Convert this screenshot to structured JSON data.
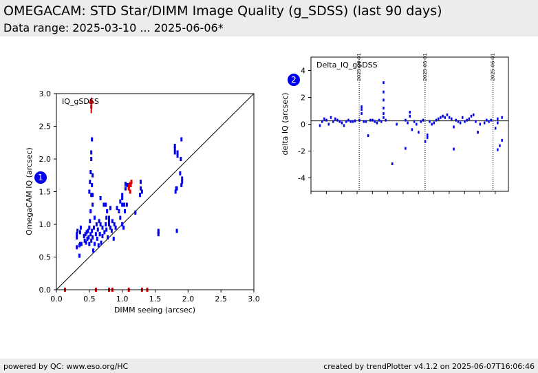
{
  "header": {
    "title": "OMEGACAM: STD Star/DIMM Image Quality (g_SDSS) (last 90 days)",
    "subtitle": "Data range: 2025-03-10 ... 2025-06-06*"
  },
  "footer": {
    "left": "powered by QC: www.eso.org/HC",
    "right": "created by trendPlotter v4.1.2 on 2025-06-07T16:06:46"
  },
  "colors": {
    "points": "#0000ee",
    "outliers": "#dd0000",
    "badge": "#0000ee"
  },
  "chart_data": [
    {
      "type": "scatter",
      "badge": "1",
      "title": "IQ_gSDSS",
      "xlabel": "DIMM seeing (arcsec)",
      "ylabel": "OmegaCAM IQ (arcsec)",
      "xlim": [
        0.0,
        3.0
      ],
      "ylim": [
        0.0,
        3.0
      ],
      "xticks": [
        "0.0",
        "0.5",
        "1.0",
        "1.5",
        "2.0",
        "2.5",
        "3.0"
      ],
      "yticks": [
        "0.0",
        "0.5",
        "1.0",
        "1.5",
        "2.0",
        "2.5",
        "3.0"
      ],
      "diagonal_line": true,
      "series": [
        {
          "role": "points",
          "x": [
            0.31,
            0.31,
            0.31,
            0.32,
            0.35,
            0.35,
            0.36,
            0.36,
            0.37,
            0.38,
            0.42,
            0.43,
            0.44,
            0.45,
            0.46,
            0.47,
            0.48,
            0.49,
            0.5,
            0.5,
            0.51,
            0.52,
            0.52,
            0.53,
            0.53,
            0.54,
            0.54,
            0.55,
            0.55,
            0.56,
            0.57,
            0.58,
            0.58,
            0.6,
            0.61,
            0.62,
            0.63,
            0.64,
            0.65,
            0.66,
            0.67,
            0.68,
            0.7,
            0.7,
            0.72,
            0.73,
            0.75,
            0.76,
            0.77,
            0.78,
            0.8,
            0.8,
            0.82,
            0.84,
            0.85,
            0.87,
            0.88,
            0.9,
            0.92,
            0.95,
            0.97,
            1.0,
            1.0,
            1.02,
            1.03,
            1.05,
            1.05,
            1.08,
            1.2,
            1.27,
            1.28,
            1.28,
            1.3,
            0.5,
            0.51,
            0.52,
            0.53,
            0.55,
            0.55,
            0.66,
            0.67,
            0.75,
            0.76,
            0.8,
            0.82,
            0.97,
            1.0,
            1.0,
            1.04,
            1.07,
            1.09,
            1.55,
            1.55,
            1.55,
            1.8,
            1.8,
            1.8,
            1.81,
            1.82,
            1.83,
            1.83,
            1.84,
            1.84,
            1.88,
            1.89,
            1.9,
            1.9,
            1.91,
            1.91,
            0.54,
            0.53
          ],
          "y": [
            0.65,
            0.8,
            0.85,
            0.9,
            0.52,
            0.68,
            0.7,
            0.88,
            0.95,
            0.7,
            0.82,
            0.75,
            0.85,
            0.72,
            0.88,
            0.78,
            0.9,
            0.8,
            0.7,
            0.95,
            1.05,
            0.85,
            1.2,
            0.75,
            1.45,
            0.9,
            1.6,
            0.8,
            1.75,
            0.6,
            0.95,
            0.7,
            1.1,
            0.85,
            1.0,
            0.78,
            0.92,
            0.68,
            1.05,
            0.85,
            1.4,
            0.72,
            0.95,
            0.82,
            1.3,
            0.88,
            1.0,
            0.92,
            1.2,
            0.8,
            1.0,
            1.05,
            1.25,
            0.9,
            1.05,
            0.78,
            1.0,
            0.95,
            1.25,
            1.2,
            1.35,
            1.0,
            1.45,
            0.95,
            1.3,
            1.55,
            1.62,
            1.6,
            1.18,
            1.45,
            1.55,
            1.65,
            1.5,
            1.5,
            1.65,
            1.8,
            2.0,
            1.3,
            1.45,
            0.85,
            1.0,
            1.3,
            1.1,
            1.1,
            0.95,
            1.1,
            1.3,
            1.4,
            1.2,
            1.3,
            1.6,
            0.85,
            0.88,
            0.9,
            2.1,
            2.15,
            2.2,
            1.5,
            1.55,
            1.55,
            0.9,
            2.05,
            2.1,
            1.78,
            2.0,
            1.6,
            2.3,
            1.65,
            1.7,
            2.3,
            2.1
          ]
        },
        {
          "role": "outliers",
          "x": [
            0.53,
            1.1,
            1.12,
            1.13,
            1.14,
            1.1,
            1.12,
            0.13,
            0.6,
            0.8,
            0.85,
            1.1,
            1.3,
            1.38
          ],
          "y": [
            2.8,
            1.58,
            1.62,
            1.6,
            1.65,
            1.55,
            1.5,
            0.0,
            0.0,
            0.0,
            0.0,
            0.0,
            0.0,
            0.0
          ]
        }
      ]
    },
    {
      "type": "scatter",
      "badge": "2",
      "title": "Delta_IQ_gSDSS",
      "xlabel": "",
      "ylabel": "delta IQ (arcsec)",
      "x_is_dates": true,
      "xlim": [
        "2025-03-10",
        "2025-06-06"
      ],
      "ylim": [
        -5,
        5
      ],
      "yticks": [
        "4",
        "2",
        "0",
        "-2",
        "-4"
      ],
      "reference_line_y": 0.25,
      "date_markers": [
        "2025-04-01",
        "2025-05-01",
        "2025-06-01"
      ],
      "series": [
        {
          "role": "points",
          "x": [
            "2025-03-14",
            "2025-03-15",
            "2025-03-16",
            "2025-03-17",
            "2025-03-18",
            "2025-03-19",
            "2025-03-20",
            "2025-03-21",
            "2025-03-22",
            "2025-03-23",
            "2025-03-24",
            "2025-03-25",
            "2025-03-26",
            "2025-03-27",
            "2025-03-28",
            "2025-03-29",
            "2025-03-30",
            "2025-04-01",
            "2025-04-02",
            "2025-04-02",
            "2025-04-02",
            "2025-04-03",
            "2025-04-04",
            "2025-04-05",
            "2025-04-06",
            "2025-04-07",
            "2025-04-08",
            "2025-04-09",
            "2025-04-10",
            "2025-04-11",
            "2025-04-12",
            "2025-04-12",
            "2025-04-12",
            "2025-04-12",
            "2025-04-12",
            "2025-04-12",
            "2025-04-13",
            "2025-04-16",
            "2025-04-18",
            "2025-04-22",
            "2025-04-22",
            "2025-04-23",
            "2025-04-24",
            "2025-04-24",
            "2025-04-25",
            "2025-04-26",
            "2025-04-27",
            "2025-04-28",
            "2025-04-29",
            "2025-04-30",
            "2025-05-01",
            "2025-05-02",
            "2025-05-02",
            "2025-05-03",
            "2025-05-04",
            "2025-05-05",
            "2025-05-06",
            "2025-05-07",
            "2025-05-08",
            "2025-05-09",
            "2025-05-10",
            "2025-05-11",
            "2025-05-12",
            "2025-05-13",
            "2025-05-14",
            "2025-05-15",
            "2025-05-16",
            "2025-05-17",
            "2025-05-18",
            "2025-05-19",
            "2025-05-20",
            "2025-05-21",
            "2025-05-22",
            "2025-05-23",
            "2025-05-24",
            "2025-05-25",
            "2025-05-26",
            "2025-05-28",
            "2025-05-29",
            "2025-05-30",
            "2025-05-31",
            "2025-06-02",
            "2025-06-03",
            "2025-06-03",
            "2025-06-03",
            "2025-06-04",
            "2025-06-05",
            "2025-06-05",
            "2025-05-14",
            "2025-05-25"
          ],
          "y": [
            -0.1,
            0.2,
            0.4,
            0.3,
            0.0,
            0.5,
            0.2,
            0.4,
            0.3,
            0.2,
            0.1,
            -0.1,
            0.2,
            0.3,
            0.2,
            0.2,
            0.25,
            0.3,
            0.8,
            1.1,
            1.3,
            0.2,
            0.2,
            -0.85,
            0.3,
            0.3,
            0.2,
            0.1,
            0.3,
            0.2,
            0.5,
            0.8,
            1.2,
            1.8,
            2.4,
            3.1,
            0.3,
            -2.95,
            0.0,
            0.3,
            -1.8,
            0.1,
            0.6,
            0.9,
            -0.4,
            0.2,
            0.0,
            -0.6,
            0.2,
            0.3,
            -1.3,
            -0.8,
            -1.0,
            0.2,
            0.0,
            0.1,
            0.3,
            0.4,
            0.5,
            0.6,
            0.5,
            0.7,
            0.5,
            0.4,
            -0.2,
            0.3,
            0.2,
            0.1,
            0.5,
            0.2,
            0.3,
            0.4,
            0.6,
            0.7,
            0.2,
            -0.6,
            0.0,
            0.1,
            0.3,
            0.2,
            0.3,
            -0.3,
            0.4,
            -1.9,
            0.1,
            -1.6,
            0.5,
            -1.2,
            -1.85,
            -0.6
          ]
        }
      ]
    }
  ]
}
